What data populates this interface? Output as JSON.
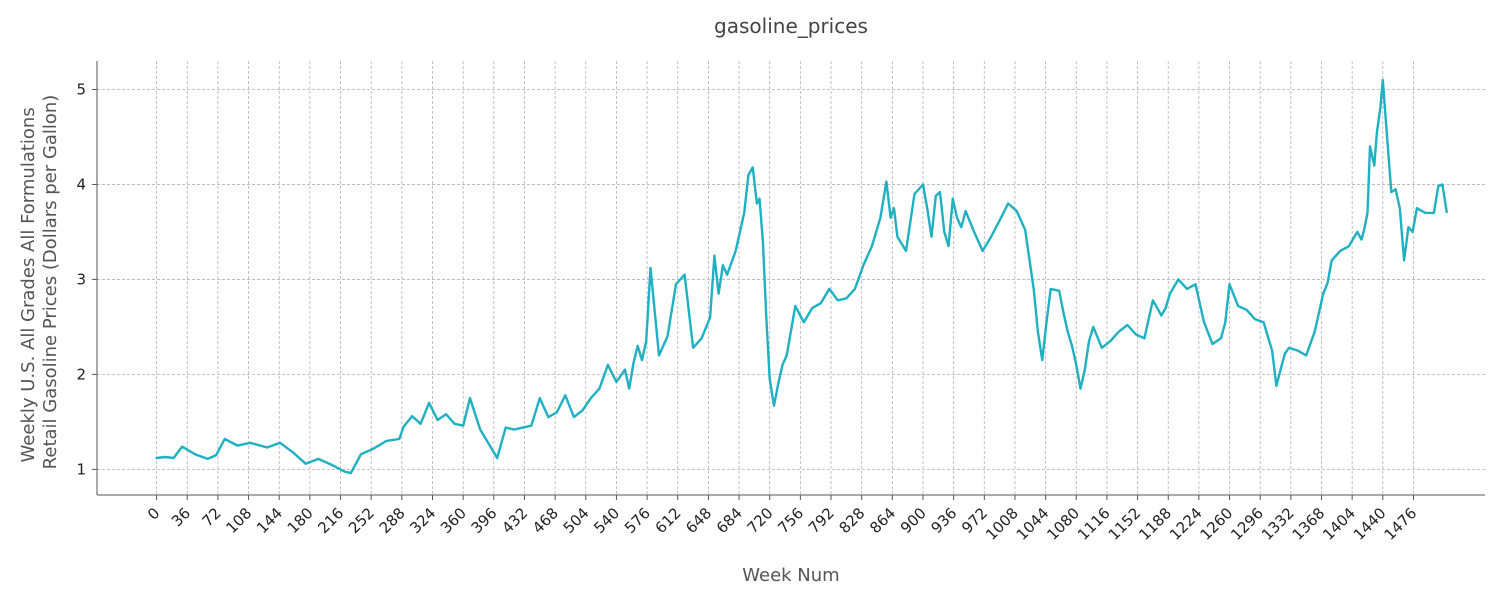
{
  "chart_data": {
    "type": "line",
    "title": "gasoline_prices",
    "xlabel": "Week Num",
    "ylabel": [
      "Weekly U.S. All Grades All Formulations",
      "Retail Gasoline Prices (Dollars per Gallon)"
    ],
    "xlim": [
      -70,
      1560
    ],
    "ylim": [
      0.73,
      5.3
    ],
    "x_ticks": [
      0,
      36,
      72,
      108,
      144,
      180,
      216,
      252,
      288,
      324,
      360,
      396,
      432,
      468,
      504,
      540,
      576,
      612,
      648,
      684,
      720,
      756,
      792,
      828,
      864,
      900,
      936,
      972,
      1008,
      1044,
      1080,
      1116,
      1152,
      1188,
      1224,
      1260,
      1296,
      1332,
      1368,
      1404,
      1440,
      1476
    ],
    "y_ticks": [
      1,
      2,
      3,
      4,
      5
    ],
    "grid": true,
    "line_color": "#1fb0c2",
    "series": [
      {
        "x": [
          0,
          10,
          20,
          30,
          45,
          60,
          70,
          80,
          95,
          110,
          130,
          145,
          160,
          175,
          190,
          205,
          220,
          228,
          240,
          255,
          270,
          285,
          290,
          300,
          310,
          320,
          330,
          340,
          350,
          360,
          368,
          380,
          400,
          410,
          420,
          430,
          440,
          450,
          460,
          470,
          480,
          490,
          500,
          510,
          520,
          530,
          540,
          550,
          555,
          560,
          565,
          570,
          575,
          580,
          590,
          600,
          610,
          620,
          630,
          640,
          650,
          655,
          660,
          665,
          670,
          680,
          690,
          695,
          700,
          705,
          708,
          712,
          716,
          720,
          725,
          730,
          735,
          740,
          750,
          760,
          770,
          780,
          790,
          800,
          810,
          820,
          830,
          840,
          850,
          857,
          862,
          866,
          870,
          880,
          890,
          900,
          905,
          910,
          915,
          920,
          925,
          930,
          935,
          940,
          945,
          950,
          960,
          970,
          980,
          990,
          1000,
          1010,
          1020,
          1030,
          1035,
          1040,
          1045,
          1050,
          1060,
          1065,
          1070,
          1075,
          1080,
          1085,
          1090,
          1095,
          1100,
          1110,
          1120,
          1130,
          1140,
          1150,
          1160,
          1170,
          1180,
          1185,
          1190,
          1200,
          1210,
          1220,
          1230,
          1240,
          1250,
          1255,
          1260,
          1270,
          1280,
          1290,
          1300,
          1310,
          1315,
          1320,
          1325,
          1330,
          1340,
          1350,
          1360,
          1370,
          1375,
          1380,
          1390,
          1400,
          1410,
          1415,
          1418,
          1422,
          1425,
          1430,
          1433,
          1437,
          1440,
          1445,
          1450,
          1455,
          1460,
          1465,
          1470,
          1475,
          1480,
          1490,
          1500,
          1505,
          1510,
          1515
        ],
        "values": [
          1.12,
          1.13,
          1.12,
          1.24,
          1.16,
          1.11,
          1.15,
          1.32,
          1.25,
          1.28,
          1.23,
          1.28,
          1.18,
          1.06,
          1.11,
          1.05,
          0.98,
          0.96,
          1.16,
          1.22,
          1.3,
          1.32,
          1.45,
          1.56,
          1.48,
          1.7,
          1.52,
          1.58,
          1.48,
          1.46,
          1.75,
          1.42,
          1.12,
          1.44,
          1.42,
          1.44,
          1.46,
          1.75,
          1.55,
          1.6,
          1.78,
          1.55,
          1.62,
          1.75,
          1.85,
          2.1,
          1.92,
          2.05,
          1.85,
          2.12,
          2.3,
          2.15,
          2.35,
          3.12,
          2.2,
          2.4,
          2.95,
          3.05,
          2.28,
          2.38,
          2.6,
          3.25,
          2.85,
          3.15,
          3.05,
          3.3,
          3.7,
          4.1,
          4.18,
          3.8,
          3.85,
          3.4,
          2.6,
          1.95,
          1.67,
          1.9,
          2.1,
          2.2,
          2.72,
          2.55,
          2.7,
          2.75,
          2.9,
          2.78,
          2.8,
          2.9,
          3.15,
          3.35,
          3.65,
          4.03,
          3.65,
          3.75,
          3.45,
          3.3,
          3.9,
          4.0,
          3.75,
          3.45,
          3.88,
          3.92,
          3.5,
          3.35,
          3.85,
          3.65,
          3.55,
          3.72,
          3.5,
          3.3,
          3.45,
          3.62,
          3.8,
          3.72,
          3.52,
          2.9,
          2.45,
          2.15,
          2.55,
          2.9,
          2.88,
          2.65,
          2.45,
          2.3,
          2.1,
          1.85,
          2.05,
          2.35,
          2.5,
          2.28,
          2.35,
          2.45,
          2.52,
          2.42,
          2.38,
          2.78,
          2.62,
          2.7,
          2.85,
          3.0,
          2.9,
          2.95,
          2.55,
          2.32,
          2.38,
          2.55,
          2.95,
          2.72,
          2.68,
          2.58,
          2.55,
          2.25,
          1.88,
          2.05,
          2.22,
          2.28,
          2.25,
          2.2,
          2.45,
          2.85,
          2.96,
          3.2,
          3.3,
          3.35,
          3.5,
          3.42,
          3.52,
          3.7,
          4.4,
          4.2,
          4.55,
          4.8,
          5.1,
          4.5,
          3.92,
          3.95,
          3.75,
          3.2,
          3.55,
          3.5,
          3.75,
          3.7,
          3.7,
          3.98,
          4.0,
          3.71
        ]
      }
    ]
  }
}
